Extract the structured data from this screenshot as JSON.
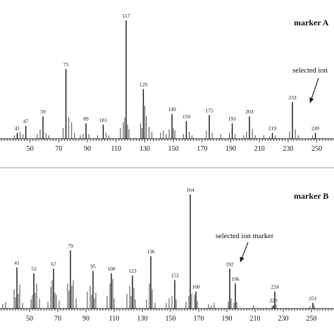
{
  "chart_data": [
    {
      "type": "bar",
      "title": "marker A",
      "xlim": [
        29,
        262
      ],
      "ylim": [
        0,
        100
      ],
      "x_ticks": [
        50,
        70,
        90,
        110,
        130,
        150,
        170,
        190,
        210,
        230,
        250
      ],
      "tick_labels": [
        "50",
        "70",
        "90",
        "110",
        "130",
        "150",
        "170",
        "190",
        "210",
        "230",
        "250"
      ],
      "annotation": {
        "text": "selected ion",
        "target_mz": 233
      },
      "peaks": [
        {
          "x": 41,
          "y": 5,
          "label": "41"
        },
        {
          "x": 47,
          "y": 11,
          "label": "47"
        },
        {
          "x": 59,
          "y": 19,
          "label": "59"
        },
        {
          "x": 75,
          "y": 59,
          "label": "75"
        },
        {
          "x": 89,
          "y": 13,
          "label": "89"
        },
        {
          "x": 101,
          "y": 12,
          "label": "101"
        },
        {
          "x": 117,
          "y": 100,
          "label": "117"
        },
        {
          "x": 129,
          "y": 42,
          "label": "129"
        },
        {
          "x": 149,
          "y": 21,
          "label": "149"
        },
        {
          "x": 159,
          "y": 15,
          "label": "159"
        },
        {
          "x": 175,
          "y": 20,
          "label": "175"
        },
        {
          "x": 191,
          "y": 13,
          "label": "191"
        },
        {
          "x": 203,
          "y": 19,
          "label": "203"
        },
        {
          "x": 219,
          "y": 5,
          "label": "219"
        },
        {
          "x": 233,
          "y": 31,
          "label": "233"
        },
        {
          "x": 249,
          "y": 5,
          "label": "249"
        }
      ],
      "minor_peaks": [
        {
          "x": 39,
          "y": 3
        },
        {
          "x": 43,
          "y": 6
        },
        {
          "x": 45,
          "y": 4
        },
        {
          "x": 55,
          "y": 4
        },
        {
          "x": 57,
          "y": 8
        },
        {
          "x": 61,
          "y": 5
        },
        {
          "x": 63,
          "y": 3
        },
        {
          "x": 73,
          "y": 9
        },
        {
          "x": 77,
          "y": 18
        },
        {
          "x": 79,
          "y": 14
        },
        {
          "x": 81,
          "y": 5
        },
        {
          "x": 85,
          "y": 3
        },
        {
          "x": 87,
          "y": 4
        },
        {
          "x": 91,
          "y": 4
        },
        {
          "x": 97,
          "y": 3
        },
        {
          "x": 103,
          "y": 5
        },
        {
          "x": 105,
          "y": 3
        },
        {
          "x": 113,
          "y": 9
        },
        {
          "x": 115,
          "y": 14
        },
        {
          "x": 116,
          "y": 18
        },
        {
          "x": 118,
          "y": 12
        },
        {
          "x": 119,
          "y": 8
        },
        {
          "x": 127,
          "y": 13
        },
        {
          "x": 128,
          "y": 9
        },
        {
          "x": 130,
          "y": 28
        },
        {
          "x": 131,
          "y": 19
        },
        {
          "x": 133,
          "y": 10
        },
        {
          "x": 135,
          "y": 6
        },
        {
          "x": 141,
          "y": 5
        },
        {
          "x": 143,
          "y": 7
        },
        {
          "x": 145,
          "y": 4
        },
        {
          "x": 147,
          "y": 8
        },
        {
          "x": 150,
          "y": 9
        },
        {
          "x": 151,
          "y": 7
        },
        {
          "x": 157,
          "y": 4
        },
        {
          "x": 161,
          "y": 6
        },
        {
          "x": 163,
          "y": 3
        },
        {
          "x": 173,
          "y": 7
        },
        {
          "x": 177,
          "y": 5
        },
        {
          "x": 183,
          "y": 4
        },
        {
          "x": 189,
          "y": 5
        },
        {
          "x": 193,
          "y": 4
        },
        {
          "x": 199,
          "y": 3
        },
        {
          "x": 201,
          "y": 6
        },
        {
          "x": 205,
          "y": 8
        },
        {
          "x": 207,
          "y": 3
        },
        {
          "x": 213,
          "y": 3
        },
        {
          "x": 217,
          "y": 2
        },
        {
          "x": 221,
          "y": 3
        },
        {
          "x": 231,
          "y": 6
        },
        {
          "x": 235,
          "y": 8
        },
        {
          "x": 237,
          "y": 3
        },
        {
          "x": 247,
          "y": 3
        }
      ]
    },
    {
      "type": "bar",
      "title": "marker B",
      "xlim": [
        29,
        266
      ],
      "ylim": [
        0,
        100
      ],
      "x_ticks": [
        50,
        70,
        90,
        110,
        130,
        150,
        170,
        190,
        210,
        230,
        250
      ],
      "tick_labels": [
        "50",
        "70",
        "90",
        "110",
        "130",
        "150",
        "170",
        "190",
        "210",
        "230",
        "250"
      ],
      "annotation": {
        "text": "selected ion marker",
        "target_mz": 192
      },
      "peaks": [
        {
          "x": 41,
          "y": 36,
          "label": "41"
        },
        {
          "x": 53,
          "y": 31,
          "label": "53"
        },
        {
          "x": 67,
          "y": 35,
          "label": "67"
        },
        {
          "x": 79,
          "y": 51,
          "label": "79"
        },
        {
          "x": 95,
          "y": 33,
          "label": "95"
        },
        {
          "x": 108,
          "y": 31,
          "label": "108"
        },
        {
          "x": 123,
          "y": 29,
          "label": "123"
        },
        {
          "x": 136,
          "y": 46,
          "label": "136"
        },
        {
          "x": 153,
          "y": 25,
          "label": "153"
        },
        {
          "x": 164,
          "y": 100,
          "label": "164"
        },
        {
          "x": 168,
          "y": 15,
          "label": "168"
        },
        {
          "x": 192,
          "y": 35,
          "label": "192"
        },
        {
          "x": 196,
          "y": 22,
          "label": "196"
        },
        {
          "x": 224,
          "y": 15,
          "label": "224"
        },
        {
          "x": 223,
          "y": 3,
          "label": "223"
        },
        {
          "x": 251,
          "y": 5,
          "label": "251"
        }
      ],
      "minor_peaks": [
        {
          "x": 31,
          "y": 4
        },
        {
          "x": 33,
          "y": 6
        },
        {
          "x": 39,
          "y": 17
        },
        {
          "x": 40,
          "y": 10
        },
        {
          "x": 42,
          "y": 13
        },
        {
          "x": 43,
          "y": 21
        },
        {
          "x": 45,
          "y": 5
        },
        {
          "x": 51,
          "y": 8
        },
        {
          "x": 52,
          "y": 12
        },
        {
          "x": 54,
          "y": 14
        },
        {
          "x": 55,
          "y": 22
        },
        {
          "x": 57,
          "y": 9
        },
        {
          "x": 63,
          "y": 6
        },
        {
          "x": 65,
          "y": 19
        },
        {
          "x": 66,
          "y": 25
        },
        {
          "x": 68,
          "y": 14
        },
        {
          "x": 69,
          "y": 12
        },
        {
          "x": 71,
          "y": 7
        },
        {
          "x": 77,
          "y": 22
        },
        {
          "x": 78,
          "y": 16
        },
        {
          "x": 80,
          "y": 20
        },
        {
          "x": 81,
          "y": 25
        },
        {
          "x": 83,
          "y": 9
        },
        {
          "x": 91,
          "y": 15
        },
        {
          "x": 93,
          "y": 20
        },
        {
          "x": 94,
          "y": 12
        },
        {
          "x": 96,
          "y": 9
        },
        {
          "x": 97,
          "y": 14
        },
        {
          "x": 105,
          "y": 11
        },
        {
          "x": 107,
          "y": 22
        },
        {
          "x": 109,
          "y": 26
        },
        {
          "x": 110,
          "y": 9
        },
        {
          "x": 119,
          "y": 13
        },
        {
          "x": 121,
          "y": 20
        },
        {
          "x": 122,
          "y": 11
        },
        {
          "x": 124,
          "y": 18
        },
        {
          "x": 125,
          "y": 8
        },
        {
          "x": 133,
          "y": 8
        },
        {
          "x": 135,
          "y": 22
        },
        {
          "x": 137,
          "y": 17
        },
        {
          "x": 139,
          "y": 5
        },
        {
          "x": 147,
          "y": 5
        },
        {
          "x": 149,
          "y": 9
        },
        {
          "x": 151,
          "y": 11
        },
        {
          "x": 154,
          "y": 8
        },
        {
          "x": 161,
          "y": 6
        },
        {
          "x": 163,
          "y": 11
        },
        {
          "x": 165,
          "y": 13
        },
        {
          "x": 167,
          "y": 12
        },
        {
          "x": 169,
          "y": 7
        },
        {
          "x": 177,
          "y": 4
        },
        {
          "x": 179,
          "y": 3
        },
        {
          "x": 181,
          "y": 5
        },
        {
          "x": 191,
          "y": 6
        },
        {
          "x": 193,
          "y": 9
        },
        {
          "x": 195,
          "y": 5
        },
        {
          "x": 197,
          "y": 6
        },
        {
          "x": 209,
          "y": 3
        },
        {
          "x": 222,
          "y": 2
        },
        {
          "x": 225,
          "y": 4
        },
        {
          "x": 249,
          "y": 2
        },
        {
          "x": 252,
          "y": 3
        }
      ]
    }
  ]
}
